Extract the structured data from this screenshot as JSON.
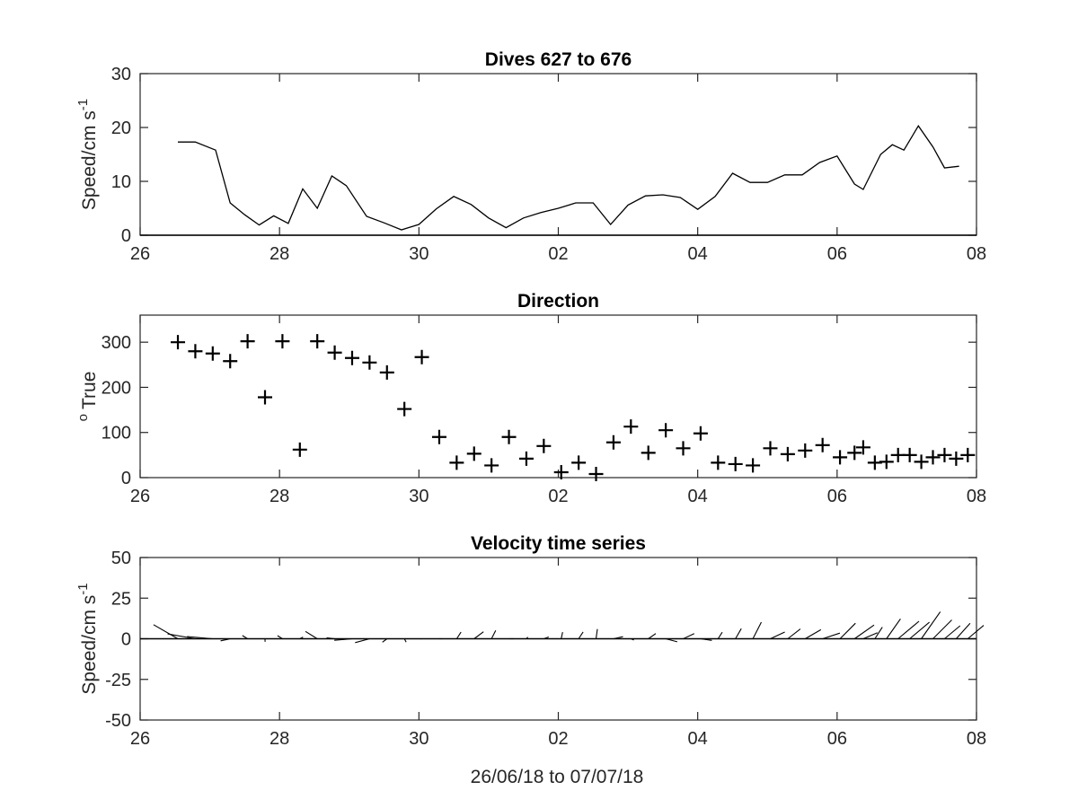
{
  "figure_xlabel": "26/06/18 to 07/07/18",
  "colors": {
    "axes": "#262626",
    "data": "#000000",
    "background": "#ffffff"
  },
  "chart_data": [
    {
      "type": "line",
      "title": "Dives 627 to 676",
      "ylabel": "Speed/cm s",
      "ylabel_superscript": "-1",
      "xlim": [
        "2018-06-26",
        "2018-07-08"
      ],
      "ylim": [
        0,
        30
      ],
      "yticks": [
        "0",
        "10",
        "20",
        "30"
      ],
      "xtick_labels": [
        "26",
        "28",
        "30",
        "02",
        "04",
        "06",
        "08"
      ],
      "grid": false,
      "x": [
        "2018-06-26 13:00",
        "2018-06-26 19:00",
        "2018-06-27 02:00",
        "2018-06-27 07:00",
        "2018-06-27 12:00",
        "2018-06-27 17:00",
        "2018-06-27 22:00",
        "2018-06-28 03:00",
        "2018-06-28 08:00",
        "2018-06-28 13:00",
        "2018-06-28 18:00",
        "2018-06-28 23:00",
        "2018-06-29 06:00",
        "2018-06-29 12:00",
        "2018-06-29 18:00",
        "2018-06-30 00:00",
        "2018-06-30 06:00",
        "2018-06-30 12:00",
        "2018-06-30 18:00",
        "2018-07-01 00:00",
        "2018-07-01 06:00",
        "2018-07-01 12:00",
        "2018-07-01 18:00",
        "2018-07-02 00:00",
        "2018-07-02 06:00",
        "2018-07-02 12:00",
        "2018-07-02 18:00",
        "2018-07-03 00:00",
        "2018-07-03 06:00",
        "2018-07-03 12:00",
        "2018-07-03 18:00",
        "2018-07-04 00:00",
        "2018-07-04 06:00",
        "2018-07-04 12:00",
        "2018-07-04 18:00",
        "2018-07-05 00:00",
        "2018-07-05 06:00",
        "2018-07-05 12:00",
        "2018-07-05 18:00",
        "2018-07-06 00:00",
        "2018-07-06 06:00",
        "2018-07-06 09:00",
        "2018-07-06 15:00",
        "2018-07-06 19:00",
        "2018-07-06 23:00",
        "2018-07-07 04:00",
        "2018-07-07 09:00",
        "2018-07-07 13:00",
        "2018-07-07 18:00"
      ],
      "series": [
        {
          "values": [
            17.3,
            17.3,
            15.8,
            6.0,
            3.8,
            1.9,
            3.6,
            2.2,
            8.6,
            5.0,
            11.0,
            9.2,
            3.5,
            2.3,
            1.0,
            2.0,
            4.9,
            7.2,
            5.7,
            3.2,
            1.4,
            3.2,
            4.2,
            5.0,
            6.0,
            6.0,
            2.0,
            5.6,
            7.3,
            7.5,
            7.0,
            4.8,
            7.2,
            11.5,
            9.8,
            9.8,
            11.2,
            11.2,
            13.5,
            14.7,
            9.5,
            8.5,
            15.0,
            16.8,
            15.8,
            20.3,
            16.4,
            12.5,
            12.8
          ]
        }
      ]
    },
    {
      "type": "scatter",
      "title": "Direction",
      "ylabel": "True",
      "ylabel_superscript": "o",
      "xlim": [
        "2018-06-26",
        "2018-07-08"
      ],
      "ylim": [
        0,
        360
      ],
      "yticks": [
        "0",
        "100",
        "200",
        "300"
      ],
      "xtick_labels": [
        "26",
        "28",
        "30",
        "02",
        "04",
        "06",
        "08"
      ],
      "grid": false,
      "marker": "+",
      "x": [
        "2018-06-26 13:00",
        "2018-06-26 19:00",
        "2018-06-27 01:00",
        "2018-06-27 07:00",
        "2018-06-27 13:00",
        "2018-06-27 19:00",
        "2018-06-28 01:00",
        "2018-06-28 07:00",
        "2018-06-28 13:00",
        "2018-06-28 19:00",
        "2018-06-29 01:00",
        "2018-06-29 07:00",
        "2018-06-29 13:00",
        "2018-06-29 19:00",
        "2018-06-30 01:00",
        "2018-06-30 07:00",
        "2018-06-30 13:00",
        "2018-06-30 19:00",
        "2018-07-01 01:00",
        "2018-07-01 07:00",
        "2018-07-01 13:00",
        "2018-07-01 19:00",
        "2018-07-02 01:00",
        "2018-07-02 07:00",
        "2018-07-02 13:00",
        "2018-07-02 19:00",
        "2018-07-03 01:00",
        "2018-07-03 07:00",
        "2018-07-03 13:00",
        "2018-07-03 19:00",
        "2018-07-04 01:00",
        "2018-07-04 07:00",
        "2018-07-04 13:00",
        "2018-07-04 19:00",
        "2018-07-05 01:00",
        "2018-07-05 07:00",
        "2018-07-05 13:00",
        "2018-07-05 19:00",
        "2018-07-06 01:00",
        "2018-07-06 06:00",
        "2018-07-06 09:00",
        "2018-07-06 13:00",
        "2018-07-06 17:00",
        "2018-07-06 21:00",
        "2018-07-07 01:00",
        "2018-07-07 05:00",
        "2018-07-07 09:00",
        "2018-07-07 13:00",
        "2018-07-07 17:00",
        "2018-07-07 21:00"
      ],
      "series": [
        {
          "values": [
            300,
            280,
            275,
            258,
            302,
            178,
            302,
            62,
            302,
            277,
            265,
            255,
            233,
            152,
            267,
            90,
            33,
            53,
            27,
            90,
            42,
            70,
            12,
            33,
            8,
            78,
            113,
            55,
            105,
            65,
            98,
            33,
            30,
            27,
            65,
            52,
            60,
            72,
            45,
            55,
            67,
            33,
            35,
            50,
            50,
            35,
            45,
            50,
            42,
            50
          ]
        }
      ]
    },
    {
      "type": "vector",
      "title": "Velocity time series",
      "ylabel": "Speed/cm s",
      "ylabel_superscript": "-1",
      "xlabel": "26/06/18 to 07/07/18",
      "xlim": [
        "2018-06-26",
        "2018-07-08"
      ],
      "ylim": [
        -50,
        50
      ],
      "yticks": [
        "-50",
        "-25",
        "0",
        "25",
        "50"
      ],
      "xtick_labels": [
        "26",
        "28",
        "30",
        "02",
        "04",
        "06",
        "08"
      ],
      "grid": false,
      "x": [
        "2018-06-26 13:00",
        "2018-06-26 19:00",
        "2018-06-27 01:00",
        "2018-06-27 07:00",
        "2018-06-27 13:00",
        "2018-06-27 19:00",
        "2018-06-28 01:00",
        "2018-06-28 07:00",
        "2018-06-28 13:00",
        "2018-06-28 19:00",
        "2018-06-29 01:00",
        "2018-06-29 07:00",
        "2018-06-29 13:00",
        "2018-06-29 19:00",
        "2018-06-30 01:00",
        "2018-06-30 07:00",
        "2018-06-30 13:00",
        "2018-06-30 19:00",
        "2018-07-01 01:00",
        "2018-07-01 07:00",
        "2018-07-01 13:00",
        "2018-07-01 19:00",
        "2018-07-02 01:00",
        "2018-07-02 07:00",
        "2018-07-02 13:00",
        "2018-07-02 19:00",
        "2018-07-03 01:00",
        "2018-07-03 07:00",
        "2018-07-03 13:00",
        "2018-07-03 19:00",
        "2018-07-04 01:00",
        "2018-07-04 07:00",
        "2018-07-04 13:00",
        "2018-07-04 19:00",
        "2018-07-05 01:00",
        "2018-07-05 07:00",
        "2018-07-05 13:00",
        "2018-07-05 19:00",
        "2018-07-06 01:00",
        "2018-07-06 06:00",
        "2018-07-06 09:00",
        "2018-07-06 13:00",
        "2018-07-06 17:00",
        "2018-07-06 21:00",
        "2018-07-07 01:00",
        "2018-07-07 05:00",
        "2018-07-07 09:00",
        "2018-07-07 13:00",
        "2018-07-07 17:00",
        "2018-07-07 21:00"
      ],
      "speed": [
        17.3,
        17.3,
        15.8,
        6.0,
        3.8,
        1.9,
        3.6,
        2.2,
        8.6,
        5.0,
        11.0,
        9.2,
        3.5,
        2.3,
        1.0,
        2.0,
        4.9,
        7.2,
        5.7,
        3.2,
        1.4,
        3.2,
        4.2,
        5.0,
        6.0,
        6.0,
        2.0,
        5.6,
        7.3,
        7.5,
        7.0,
        4.8,
        7.2,
        11.5,
        9.8,
        9.8,
        11.2,
        11.2,
        13.5,
        14.7,
        9.5,
        8.5,
        15.0,
        16.8,
        15.8,
        20.3,
        16.4,
        12.5,
        12.8,
        12.8
      ],
      "direction_deg_true": [
        300,
        280,
        275,
        258,
        302,
        178,
        302,
        62,
        302,
        277,
        265,
        255,
        233,
        152,
        267,
        90,
        33,
        53,
        27,
        90,
        42,
        70,
        12,
        33,
        8,
        78,
        113,
        55,
        105,
        65,
        98,
        33,
        30,
        27,
        65,
        52,
        60,
        72,
        45,
        55,
        67,
        33,
        35,
        50,
        50,
        35,
        45,
        50,
        42,
        50
      ]
    }
  ]
}
